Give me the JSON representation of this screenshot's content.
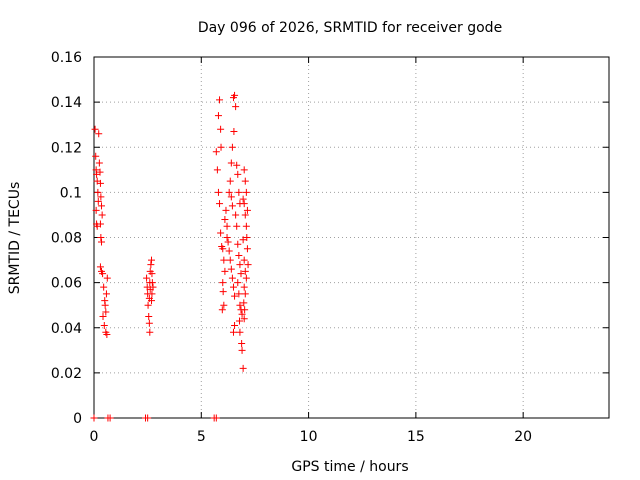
{
  "chart_data": {
    "type": "scatter",
    "title": "Day 096 of 2026, SRMTID for receiver gode",
    "xlabel": "GPS time / hours",
    "ylabel": "SRMTID / TECUs",
    "xlim": [
      0,
      24
    ],
    "ylim": [
      0,
      0.16
    ],
    "xticks": [
      0,
      5,
      10,
      15,
      20
    ],
    "yticks": [
      0,
      0.02,
      0.04,
      0.06,
      0.08,
      0.1,
      0.12,
      0.14,
      0.16
    ],
    "xtick_labels": [
      "0",
      "5",
      "10",
      "15",
      "20"
    ],
    "ytick_labels": [
      "0",
      "0.02",
      "0.04",
      "0.06",
      "0.08",
      "0.1",
      "0.12",
      "0.14",
      "0.16"
    ],
    "grid": true,
    "marker": "+",
    "color": "#ff0000",
    "series": [
      {
        "name": "SRMTID",
        "points": [
          [
            0.05,
            0.128
          ],
          [
            0.08,
            0.116
          ],
          [
            0.1,
            0.11
          ],
          [
            0.12,
            0.108
          ],
          [
            0.15,
            0.105
          ],
          [
            0.18,
            0.1
          ],
          [
            0.2,
            0.096
          ],
          [
            0.1,
            0.092
          ],
          [
            0.12,
            0.086
          ],
          [
            0.15,
            0.085
          ],
          [
            0.22,
            0.126
          ],
          [
            0.25,
            0.113
          ],
          [
            0.28,
            0.109
          ],
          [
            0.3,
            0.104
          ],
          [
            0.32,
            0.098
          ],
          [
            0.35,
            0.094
          ],
          [
            0.38,
            0.09
          ],
          [
            0.3,
            0.086
          ],
          [
            0.32,
            0.08
          ],
          [
            0.35,
            0.078
          ],
          [
            0.3,
            0.067
          ],
          [
            0.35,
            0.065
          ],
          [
            0.4,
            0.064
          ],
          [
            0.45,
            0.058
          ],
          [
            0.5,
            0.052
          ],
          [
            0.52,
            0.05
          ],
          [
            0.55,
            0.047
          ],
          [
            0.42,
            0.045
          ],
          [
            0.48,
            0.041
          ],
          [
            0.55,
            0.038
          ],
          [
            0.6,
            0.037
          ],
          [
            0.62,
            0.062
          ],
          [
            0.58,
            0.055
          ],
          [
            2.45,
            0.062
          ],
          [
            2.48,
            0.058
          ],
          [
            2.5,
            0.055
          ],
          [
            2.52,
            0.05
          ],
          [
            2.55,
            0.045
          ],
          [
            2.58,
            0.042
          ],
          [
            2.6,
            0.038
          ],
          [
            2.62,
            0.065
          ],
          [
            2.65,
            0.068
          ],
          [
            2.68,
            0.07
          ],
          [
            2.7,
            0.064
          ],
          [
            2.72,
            0.06
          ],
          [
            2.75,
            0.058
          ],
          [
            2.7,
            0.055
          ],
          [
            2.68,
            0.052
          ],
          [
            2.6,
            0.06
          ],
          [
            2.62,
            0.057
          ],
          [
            2.58,
            0.053
          ],
          [
            5.7,
            0.118
          ],
          [
            5.75,
            0.11
          ],
          [
            5.8,
            0.134
          ],
          [
            5.85,
            0.141
          ],
          [
            5.9,
            0.128
          ],
          [
            5.92,
            0.12
          ],
          [
            5.8,
            0.1
          ],
          [
            5.85,
            0.095
          ],
          [
            5.9,
            0.082
          ],
          [
            5.95,
            0.076
          ],
          [
            6.0,
            0.075
          ],
          [
            6.05,
            0.07
          ],
          [
            6.1,
            0.065
          ],
          [
            6.0,
            0.06
          ],
          [
            6.02,
            0.056
          ],
          [
            6.05,
            0.05
          ],
          [
            5.98,
            0.048
          ],
          [
            6.1,
            0.088
          ],
          [
            6.15,
            0.092
          ],
          [
            6.2,
            0.085
          ],
          [
            6.2,
            0.08
          ],
          [
            6.25,
            0.078
          ],
          [
            6.3,
            0.074
          ],
          [
            6.35,
            0.07
          ],
          [
            6.4,
            0.066
          ],
          [
            6.45,
            0.062
          ],
          [
            6.5,
            0.058
          ],
          [
            6.55,
            0.054
          ],
          [
            6.3,
            0.1
          ],
          [
            6.35,
            0.105
          ],
          [
            6.4,
            0.098
          ],
          [
            6.45,
            0.094
          ],
          [
            6.5,
            0.142
          ],
          [
            6.55,
            0.143
          ],
          [
            6.6,
            0.138
          ],
          [
            6.52,
            0.127
          ],
          [
            6.45,
            0.12
          ],
          [
            6.4,
            0.113
          ],
          [
            6.55,
            0.041
          ],
          [
            6.5,
            0.038
          ],
          [
            6.6,
            0.09
          ],
          [
            6.65,
            0.085
          ],
          [
            6.7,
            0.077
          ],
          [
            6.75,
            0.072
          ],
          [
            6.8,
            0.068
          ],
          [
            6.85,
            0.064
          ],
          [
            6.7,
            0.06
          ],
          [
            6.75,
            0.055
          ],
          [
            6.8,
            0.05
          ],
          [
            6.85,
            0.048
          ],
          [
            6.9,
            0.046
          ],
          [
            6.78,
            0.043
          ],
          [
            6.8,
            0.038
          ],
          [
            6.88,
            0.033
          ],
          [
            6.9,
            0.03
          ],
          [
            6.95,
            0.022
          ],
          [
            6.7,
            0.108
          ],
          [
            6.75,
            0.1
          ],
          [
            6.65,
            0.112
          ],
          [
            6.8,
            0.095
          ],
          [
            7.0,
            0.11
          ],
          [
            7.05,
            0.105
          ],
          [
            7.1,
            0.1
          ],
          [
            7.0,
            0.095
          ],
          [
            7.05,
            0.09
          ],
          [
            7.1,
            0.085
          ],
          [
            7.12,
            0.08
          ],
          [
            7.15,
            0.075
          ],
          [
            7.0,
            0.07
          ],
          [
            7.05,
            0.065
          ],
          [
            7.1,
            0.062
          ],
          [
            7.0,
            0.058
          ],
          [
            7.05,
            0.055
          ],
          [
            6.98,
            0.051
          ],
          [
            7.02,
            0.048
          ],
          [
            7.0,
            0.044
          ],
          [
            6.95,
            0.097
          ],
          [
            7.15,
            0.092
          ],
          [
            7.18,
            0.068
          ],
          [
            6.95,
            0.079
          ],
          [
            0.0,
            0.0
          ],
          [
            0.65,
            0.0
          ],
          [
            0.75,
            0.0
          ],
          [
            2.4,
            0.0
          ],
          [
            2.5,
            0.0
          ],
          [
            5.6,
            0.0
          ],
          [
            5.7,
            0.0
          ]
        ]
      }
    ]
  }
}
